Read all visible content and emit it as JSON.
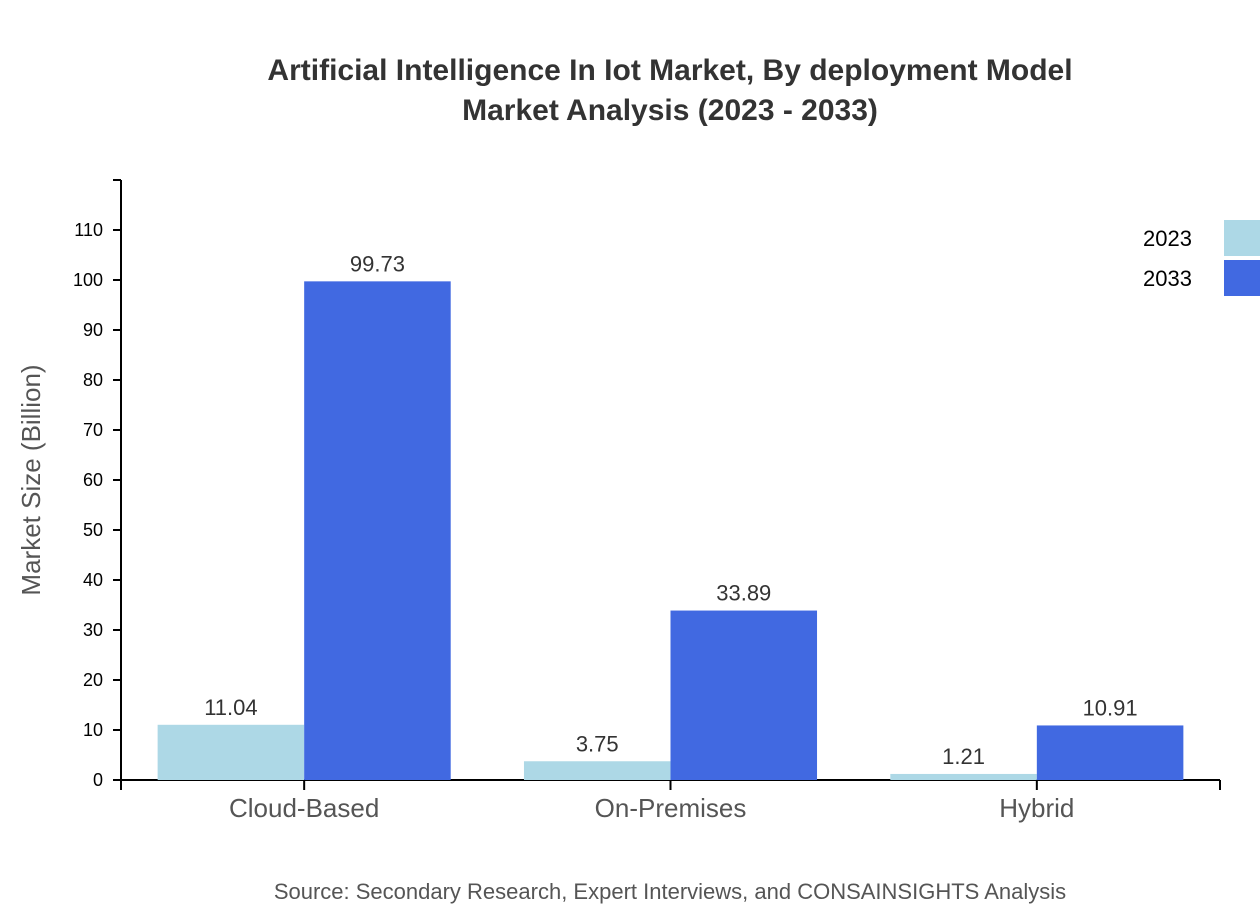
{
  "chart_data": {
    "type": "bar",
    "title": "Artificial Intelligence In Iot Market, By deployment Model",
    "subtitle": "Market Analysis (2023 - 2033)",
    "xlabel": "",
    "ylabel": "Market Size (Billion)",
    "ylim": [
      0,
      120
    ],
    "yticks": [
      0,
      10,
      20,
      30,
      40,
      50,
      60,
      70,
      80,
      90,
      100,
      110
    ],
    "categories": [
      "Cloud-Based",
      "On-Premises",
      "Hybrid"
    ],
    "series": [
      {
        "name": "2023",
        "color": "#add8e6",
        "values": [
          11.04,
          3.75,
          1.21
        ]
      },
      {
        "name": "2033",
        "color": "#4169e1",
        "values": [
          99.73,
          33.89,
          10.91
        ]
      }
    ],
    "grid": false,
    "legend": "top-right",
    "source": "Source: Secondary Research, Expert Interviews, and CONSAINSIGHTS Analysis"
  }
}
